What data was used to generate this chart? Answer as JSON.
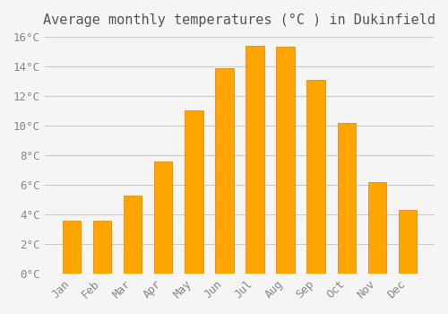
{
  "title": "Average monthly temperatures (°C ) in Dukinfield",
  "months": [
    "Jan",
    "Feb",
    "Mar",
    "Apr",
    "May",
    "Jun",
    "Jul",
    "Aug",
    "Sep",
    "Oct",
    "Nov",
    "Dec"
  ],
  "values": [
    3.6,
    3.6,
    5.3,
    7.6,
    11.0,
    13.9,
    15.4,
    15.3,
    13.1,
    10.2,
    6.2,
    4.3
  ],
  "bar_color": "#FFA500",
  "bar_edge_color": "#E08000",
  "ylim": [
    0,
    16
  ],
  "yticks": [
    0,
    2,
    4,
    6,
    8,
    10,
    12,
    14,
    16
  ],
  "ytick_labels": [
    "0°C",
    "2°C",
    "4°C",
    "6°C",
    "8°C",
    "10°C",
    "12°C",
    "14°C",
    "16°C"
  ],
  "background_color": "#f5f5f5",
  "grid_color": "#cccccc",
  "title_fontsize": 11,
  "tick_fontsize": 9
}
